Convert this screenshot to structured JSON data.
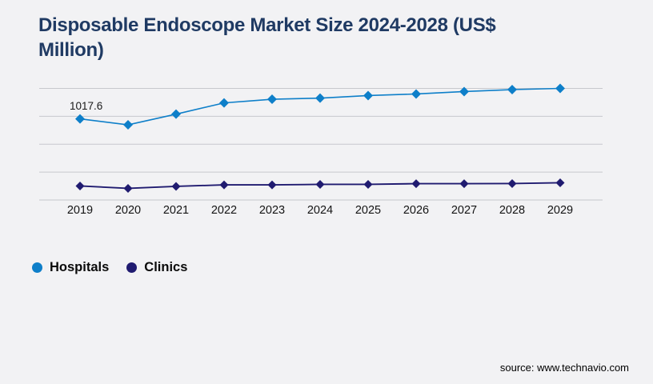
{
  "header": {
    "title_line1": "Disposable Endoscope Market Size 2024-2028 (US$",
    "title_line2": "Million)",
    "title_full": "Disposable Endoscope Market Size 2024-2028 (US$ Million)"
  },
  "chart_data": {
    "type": "line",
    "title": "Disposable Endoscope Market Size 2024-2028 (US$ Million)",
    "categories": [
      "2019",
      "2020",
      "2021",
      "2022",
      "2023",
      "2024",
      "2025",
      "2026",
      "2027",
      "2028",
      "2029"
    ],
    "series": [
      {
        "name": "Hospitals",
        "color": "#0e7fc9",
        "marker": "diamond",
        "values": [
          1017.6,
          943,
          1077,
          1218,
          1264,
          1278,
          1310,
          1330,
          1360,
          1385,
          1400
        ]
      },
      {
        "name": "Clinics",
        "color": "#201b70",
        "marker": "diamond",
        "values": [
          176,
          146,
          171,
          190,
          190,
          196,
          196,
          205,
          205,
          206,
          216
        ]
      }
    ],
    "annotation": {
      "series": "Hospitals",
      "category": "2019",
      "text": "1017.6"
    },
    "xlabel": "",
    "ylabel": "",
    "ylim": [
      0,
      1400
    ],
    "gridline_values": [
      0,
      350,
      700,
      1050,
      1400
    ],
    "grid": "horizontal-only, no y-axis tick labels",
    "legend_position": "bottom-left"
  },
  "legend": [
    {
      "label": "Hospitals"
    },
    {
      "label": "Clinics"
    }
  ],
  "footer": {
    "source": "source: www.technavio.com"
  },
  "colors": {
    "background": "#f2f2f4",
    "gridline": "#c7c8cd",
    "title": "#1f3a63",
    "hospitals": "#0e7fc9",
    "clinics": "#201b70",
    "axis_text": "#141414"
  }
}
